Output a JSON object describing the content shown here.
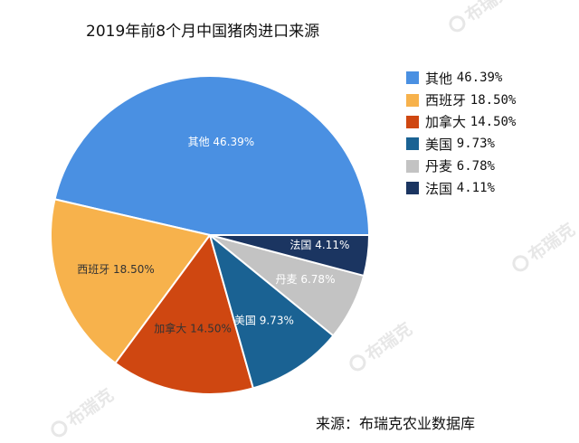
{
  "chart_data": {
    "type": "pie",
    "title": "2019年前8个月中国猪肉进口来源",
    "unit": "%",
    "slices": [
      {
        "label": "其他",
        "value": 46.39,
        "display": "46.39%",
        "color": "#4a90e2",
        "label_color": "#ffffff"
      },
      {
        "label": "西班牙",
        "value": 18.5,
        "display": "18.50%",
        "color": "#f7b24c",
        "label_color": "#333333"
      },
      {
        "label": "加拿大",
        "value": 14.5,
        "display": "14.50%",
        "color": "#cf4711",
        "label_color": "#333333"
      },
      {
        "label": "美国",
        "value": 9.73,
        "display": "9.73%",
        "color": "#1a6293",
        "label_color": "#ffffff"
      },
      {
        "label": "丹麦",
        "value": 6.78,
        "display": "6.78%",
        "color": "#c3c3c3",
        "label_color": "#ffffff"
      },
      {
        "label": "法国",
        "value": 4.11,
        "display": "4.11%",
        "color": "#1b3561",
        "label_color": "#ffffff"
      }
    ],
    "start_angle_deg": 0,
    "direction": "counterclockwise",
    "legend": {
      "position": "right",
      "items": [
        {
          "label": "其他",
          "value": "46.39%"
        },
        {
          "label": "西班牙",
          "value": "18.50%"
        },
        {
          "label": "加拿大",
          "value": "14.50%"
        },
        {
          "label": "美国",
          "value": "9.73%"
        },
        {
          "label": "丹麦",
          "value": "6.78%"
        },
        {
          "label": "法国",
          "value": "4.11%"
        }
      ]
    },
    "source": "来源：布瑞克农业数据库"
  },
  "watermark": {
    "text": "布瑞克",
    "color": "#e7e7e7"
  }
}
